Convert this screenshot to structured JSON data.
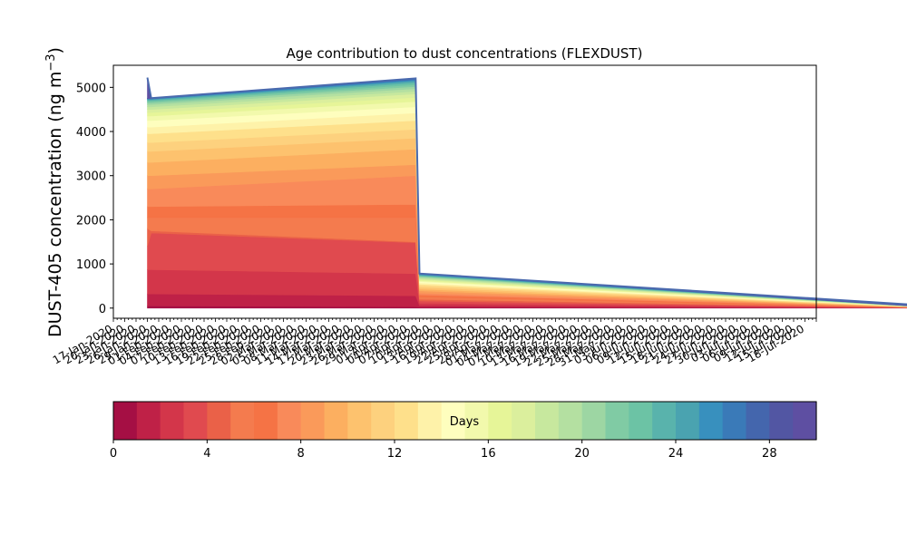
{
  "chart_data": {
    "type": "area",
    "title": "Age contribution to dust concentrations (FLEXDUST)",
    "ylabel": "DUST-405 concentration (ng m",
    "ylabel_superscript": "−3",
    "ylabel_close": ")",
    "ylim": [
      -230,
      5500
    ],
    "y_ticks": [
      0,
      1000,
      2000,
      3000,
      4000,
      5000
    ],
    "x_tick_labels": [
      "17-Jan-2020",
      "20-Jan-2020",
      "23-Jan-2020",
      "26-Jan-2020",
      "29-Jan-2020",
      "01-Feb-2020",
      "04-Feb-2020",
      "07-Feb-2020",
      "10-Feb-2020",
      "13-Feb-2020",
      "16-Feb-2020",
      "19-Feb-2020",
      "22-Feb-2020",
      "25-Feb-2020",
      "28-Feb-2020",
      "02-Mar-2020",
      "05-Mar-2020",
      "08-Mar-2020",
      "11-Mar-2020",
      "14-Mar-2020",
      "17-Mar-2020",
      "20-Mar-2020",
      "23-Mar-2020",
      "26-Mar-2020",
      "29-Mar-2020",
      "01-Apr-2020",
      "04-Apr-2020",
      "07-Apr-2020",
      "10-Apr-2020",
      "13-Apr-2020",
      "16-Apr-2020",
      "19-Apr-2020",
      "22-Apr-2020",
      "25-Apr-2020",
      "28-Apr-2020",
      "01-May-2020",
      "04-May-2020",
      "07-May-2020",
      "10-May-2020",
      "13-May-2020",
      "16-May-2020",
      "19-May-2020",
      "22-May-2020",
      "25-May-2020",
      "28-May-2020",
      "31-May-2020",
      "03-Jun-2020",
      "06-Jun-2020",
      "09-Jun-2020",
      "12-Jun-2020",
      "15-Jun-2020",
      "18-Jun-2020",
      "21-Jun-2020",
      "24-Jun-2020",
      "27-Jun-2020",
      "30-Jun-2020",
      "03-Jul-2020",
      "06-Jul-2020",
      "09-Jul-2020",
      "12-Jul-2020",
      "15-Jul-2020",
      "18-Jul-2020"
    ],
    "colorbar": {
      "label": "Days",
      "range": [
        0,
        30
      ],
      "ticks": [
        0,
        4,
        8,
        12,
        16,
        20,
        24,
        28
      ],
      "colors": [
        "#a50f44",
        "#bf2147",
        "#d3364a",
        "#e04a4f",
        "#ea6148",
        "#f47b4e",
        "#f57345",
        "#f98a5a",
        "#fa9a5a",
        "#fcaf60",
        "#fdc26e",
        "#fdd17e",
        "#fee08b",
        "#fef2a9",
        "#fefebe",
        "#f2f9ac",
        "#e6f598",
        "#dbef9d",
        "#c7e89e",
        "#b4e0a1",
        "#9dd6a3",
        "#80cba4",
        "#6cc3a5",
        "#59b3ac",
        "#4aa3b0",
        "#3890be",
        "#3a7ab8",
        "#4466ad",
        "#5256a3",
        "#5e4fa2"
      ]
    },
    "x_range_days": [
      0,
      186
    ],
    "time_points_days": [
      9,
      10,
      80,
      81,
      220
    ],
    "series": [
      {
        "values": [
          0,
          0,
          0,
          0,
          0
        ]
      },
      {
        "values": [
          50,
          50,
          30,
          20,
          0
        ]
      },
      {
        "values": [
          320,
          320,
          280,
          60,
          0
        ]
      },
      {
        "values": [
          870,
          870,
          780,
          110,
          0
        ]
      },
      {
        "values": [
          1400,
          1700,
          1480,
          160,
          0
        ]
      },
      {
        "values": [
          1800,
          1750,
          1500,
          200,
          0
        ]
      },
      {
        "values": [
          2050,
          2050,
          2050,
          250,
          0
        ]
      },
      {
        "values": [
          2300,
          2300,
          2350,
          300,
          0
        ]
      },
      {
        "values": [
          2700,
          2700,
          3000,
          340,
          0
        ]
      },
      {
        "values": [
          3000,
          3000,
          3250,
          390,
          0
        ]
      },
      {
        "values": [
          3300,
          3300,
          3600,
          430,
          0
        ]
      },
      {
        "values": [
          3550,
          3550,
          3850,
          470,
          0
        ]
      },
      {
        "values": [
          3750,
          3750,
          4050,
          510,
          0
        ]
      },
      {
        "values": [
          3950,
          3950,
          4250,
          540,
          0
        ]
      },
      {
        "values": [
          4100,
          4100,
          4420,
          570,
          0
        ]
      },
      {
        "values": [
          4250,
          4250,
          4560,
          600,
          0
        ]
      },
      {
        "values": [
          4350,
          4350,
          4680,
          620,
          0
        ]
      },
      {
        "values": [
          4430,
          4430,
          4770,
          640,
          0
        ]
      },
      {
        "values": [
          4500,
          4500,
          4850,
          660,
          0
        ]
      },
      {
        "values": [
          4560,
          4560,
          4910,
          680,
          0
        ]
      },
      {
        "values": [
          4610,
          4610,
          4970,
          700,
          0
        ]
      },
      {
        "values": [
          4650,
          4650,
          5020,
          715,
          0
        ]
      },
      {
        "values": [
          4680,
          4680,
          5060,
          730,
          0
        ]
      },
      {
        "values": [
          4700,
          4700,
          5100,
          740,
          0
        ]
      },
      {
        "values": [
          4720,
          4720,
          5130,
          750,
          0
        ]
      },
      {
        "values": [
          4730,
          4730,
          5150,
          760,
          0
        ]
      },
      {
        "values": [
          4740,
          4740,
          5170,
          768,
          0
        ]
      },
      {
        "values": [
          4745,
          4745,
          5185,
          774,
          0
        ]
      },
      {
        "values": [
          4750,
          4750,
          5195,
          778,
          0
        ]
      },
      {
        "values": [
          4752,
          4752,
          5200,
          780,
          0
        ]
      },
      {
        "values": [
          5220,
          4755,
          5205,
          782,
          30
        ]
      }
    ]
  }
}
